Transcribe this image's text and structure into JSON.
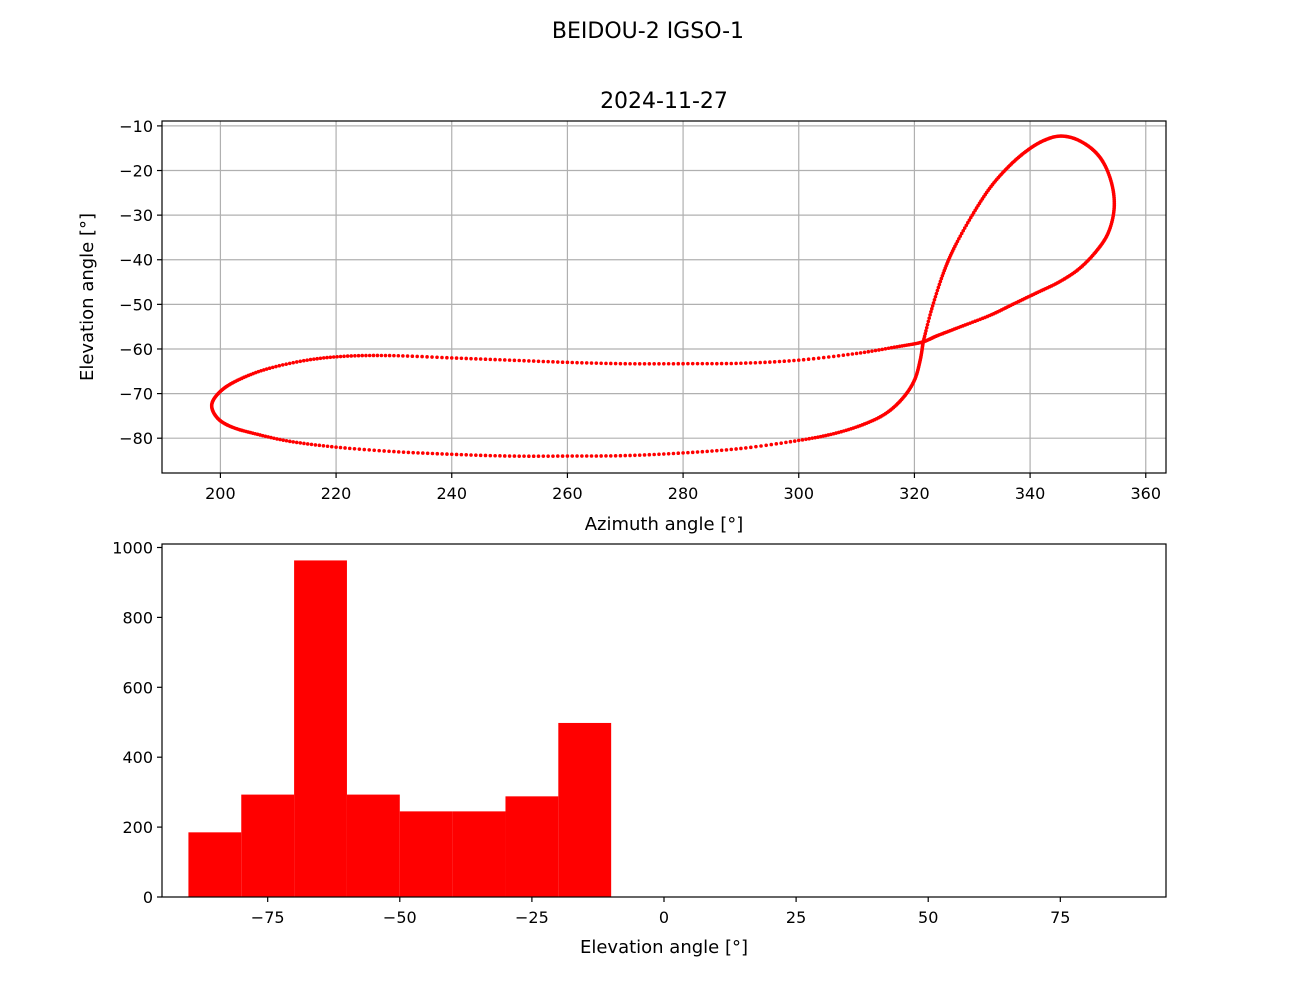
{
  "figure": {
    "suptitle": "BEIDOU-2 IGSO-1"
  },
  "colors": {
    "series": "#ff0000",
    "grid": "#b0b0b0",
    "axes": "#000000"
  },
  "chart_data": [
    {
      "type": "scatter",
      "title": "2024-11-27",
      "xlabel": "Azimuth angle [°]",
      "ylabel": "Elevation angle [°]",
      "xlim": [
        189.9,
        363.5
      ],
      "ylim": [
        -87.8,
        -8.9
      ],
      "xticks": [
        200,
        220,
        240,
        260,
        280,
        300,
        320,
        340,
        360
      ],
      "yticks": [
        -10,
        -20,
        -30,
        -40,
        -50,
        -60,
        -70,
        -80
      ],
      "grid": true,
      "marker": "small dot",
      "series": [
        {
          "trace_points": [
            [
              321.5,
              -58.5
            ],
            [
              323,
              -51
            ],
            [
              325,
              -43
            ],
            [
              327,
              -37
            ],
            [
              330,
              -30
            ],
            [
              333,
              -24
            ],
            [
              336,
              -19.5
            ],
            [
              339,
              -16
            ],
            [
              342,
              -13.5
            ],
            [
              345,
              -12.3
            ],
            [
              348,
              -13
            ],
            [
              351,
              -15.5
            ],
            [
              353,
              -19
            ],
            [
              354.3,
              -24
            ],
            [
              354.5,
              -29
            ],
            [
              353.5,
              -34
            ],
            [
              351.5,
              -38
            ],
            [
              348.5,
              -42
            ],
            [
              345,
              -45
            ],
            [
              341,
              -47.5
            ],
            [
              337,
              -50
            ],
            [
              333,
              -52.5
            ],
            [
              328,
              -55
            ],
            [
              324,
              -57
            ],
            [
              321.2,
              -58.5
            ],
            [
              317,
              -59.5
            ],
            [
              310,
              -61
            ],
            [
              300,
              -62.5
            ],
            [
              290,
              -63.2
            ],
            [
              280,
              -63.3
            ],
            [
              270,
              -63.3
            ],
            [
              260,
              -63
            ],
            [
              250,
              -62.5
            ],
            [
              240,
              -62
            ],
            [
              230,
              -61.5
            ],
            [
              222,
              -61.6
            ],
            [
              215,
              -62.5
            ],
            [
              208,
              -64.5
            ],
            [
              203,
              -67
            ],
            [
              200,
              -69.5
            ],
            [
              198.5,
              -72.5
            ],
            [
              199.5,
              -75.5
            ],
            [
              202,
              -77.5
            ],
            [
              206,
              -79
            ],
            [
              212,
              -80.7
            ],
            [
              220,
              -82
            ],
            [
              230,
              -83
            ],
            [
              240,
              -83.6
            ],
            [
              250,
              -84
            ],
            [
              260,
              -84
            ],
            [
              270,
              -83.9
            ],
            [
              280,
              -83.3
            ],
            [
              290,
              -82.3
            ],
            [
              300,
              -80.5
            ],
            [
              306,
              -79
            ],
            [
              311,
              -77
            ],
            [
              315,
              -74.5
            ],
            [
              318,
              -71
            ],
            [
              320,
              -67
            ],
            [
              321,
              -62.5
            ],
            [
              321.5,
              -58.5
            ]
          ]
        }
      ]
    },
    {
      "type": "bar",
      "subtype": "histogram",
      "xlabel": "Elevation angle [°]",
      "ylabel": "",
      "xlim": [
        -95,
        95
      ],
      "ylim": [
        0,
        1010
      ],
      "xticks": [
        -75,
        -50,
        -25,
        0,
        25,
        50,
        75
      ],
      "yticks": [
        0,
        200,
        400,
        600,
        800,
        1000
      ],
      "grid": false,
      "bin_edges": [
        -90,
        -80,
        -70,
        -60,
        -50,
        -40,
        -30,
        -20,
        -10,
        0,
        10,
        20,
        30,
        40,
        50,
        60,
        70,
        80,
        90
      ],
      "values": [
        185,
        293,
        963,
        293,
        245,
        245,
        288,
        498,
        0,
        0,
        0,
        0,
        0,
        0,
        0,
        0,
        0,
        0
      ]
    }
  ]
}
